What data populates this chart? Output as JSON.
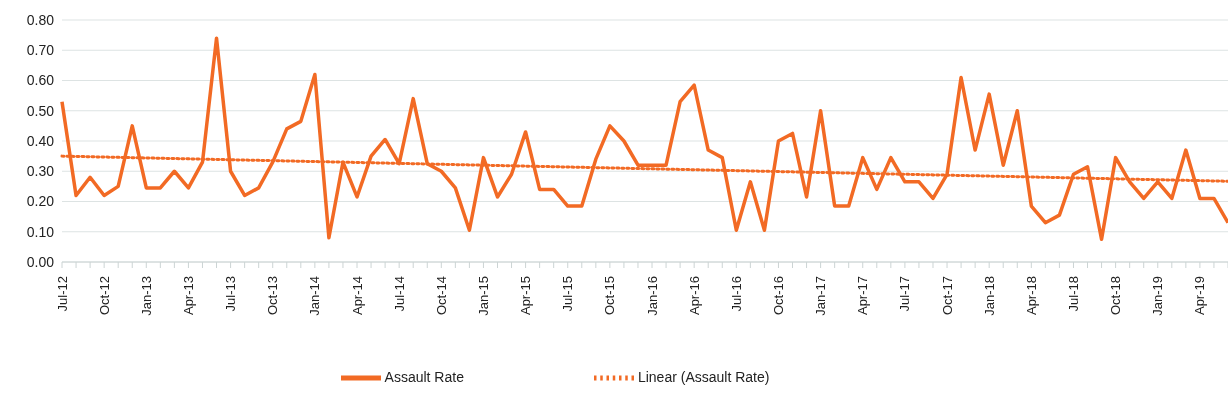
{
  "chart_data": {
    "type": "line",
    "categories": [
      "Jul-12",
      null,
      null,
      "Oct-12",
      null,
      null,
      "Jan-13",
      null,
      null,
      "Apr-13",
      null,
      null,
      "Jul-13",
      null,
      null,
      "Oct-13",
      null,
      null,
      "Jan-14",
      null,
      null,
      "Apr-14",
      null,
      null,
      "Jul-14",
      null,
      null,
      "Oct-14",
      null,
      null,
      "Jan-15",
      null,
      null,
      "Apr-15",
      null,
      null,
      "Jul-15",
      null,
      null,
      "Oct-15",
      null,
      null,
      "Jan-16",
      null,
      null,
      "Apr-16",
      null,
      null,
      "Jul-16",
      null,
      null,
      "Oct-16",
      null,
      null,
      "Jan-17",
      null,
      null,
      "Apr-17",
      null,
      null,
      "Jul-17",
      null,
      null,
      "Oct-17",
      null,
      null,
      "Jan-18",
      null,
      null,
      "Apr-18",
      null,
      null,
      "Jul-18",
      null,
      null,
      "Oct-18",
      null,
      null,
      "Jan-19",
      null,
      null,
      "Apr-19",
      null,
      null
    ],
    "series": [
      {
        "name": "Assault Rate",
        "color": "#f26a24",
        "line_style": "solid",
        "values": [
          0.53,
          0.22,
          0.28,
          0.22,
          0.25,
          0.45,
          0.245,
          0.245,
          0.3,
          0.245,
          0.33,
          0.74,
          0.3,
          0.22,
          0.245,
          0.33,
          0.44,
          0.465,
          0.62,
          0.08,
          0.33,
          0.215,
          0.35,
          0.405,
          0.325,
          0.54,
          0.325,
          0.3,
          0.245,
          0.105,
          0.345,
          0.215,
          0.29,
          0.43,
          0.24,
          0.24,
          0.185,
          0.185,
          0.34,
          0.45,
          0.4,
          0.32,
          0.32,
          0.32,
          0.53,
          0.585,
          0.37,
          0.345,
          0.105,
          0.265,
          0.105,
          0.4,
          0.425,
          0.215,
          0.5,
          0.185,
          0.185,
          0.345,
          0.24,
          0.345,
          0.265,
          0.265,
          0.21,
          0.29,
          0.61,
          0.37,
          0.555,
          0.32,
          0.5,
          0.185,
          0.13,
          0.155,
          0.29,
          0.315,
          0.075,
          0.345,
          0.265,
          0.21,
          0.265,
          0.21,
          0.37,
          0.21,
          0.21,
          0.13
        ]
      },
      {
        "name": "Linear (Assault Rate)",
        "color": "#f26a24",
        "line_style": "dotted",
        "values": [
          0.35,
          0.349,
          0.348,
          0.347,
          0.346,
          0.345,
          0.344,
          0.343,
          0.342,
          0.341,
          0.34,
          0.339,
          0.338,
          0.337,
          0.336,
          0.335,
          0.334,
          0.333,
          0.332,
          0.331,
          0.33,
          0.329,
          0.328,
          0.327,
          0.326,
          0.325,
          0.324,
          0.323,
          0.322,
          0.321,
          0.32,
          0.319,
          0.318,
          0.317,
          0.316,
          0.315,
          0.314,
          0.313,
          0.312,
          0.311,
          0.31,
          0.309,
          0.308,
          0.307,
          0.306,
          0.305,
          0.304,
          0.303,
          0.302,
          0.301,
          0.3,
          0.299,
          0.298,
          0.297,
          0.296,
          0.295,
          0.294,
          0.293,
          0.292,
          0.291,
          0.29,
          0.289,
          0.288,
          0.287,
          0.286,
          0.285,
          0.284,
          0.283,
          0.282,
          0.281,
          0.28,
          0.279,
          0.278,
          0.277,
          0.276,
          0.275,
          0.274,
          0.273,
          0.272,
          0.271,
          0.27,
          0.269,
          0.268,
          0.267
        ]
      }
    ],
    "ylim": [
      0,
      0.8
    ],
    "yticks": [
      {
        "value": 0,
        "label": "0.00"
      },
      {
        "value": 0.1,
        "label": "0.10"
      },
      {
        "value": 0.2,
        "label": "0.20"
      },
      {
        "value": 0.3,
        "label": "0.30"
      },
      {
        "value": 0.4,
        "label": "0.40"
      },
      {
        "value": 0.5,
        "label": "0.50"
      },
      {
        "value": 0.6,
        "label": "0.60"
      },
      {
        "value": 0.7,
        "label": "0.70"
      },
      {
        "value": 0.8,
        "label": "0.80"
      }
    ],
    "grid": "y",
    "legend": "bottom",
    "marker": "none"
  }
}
